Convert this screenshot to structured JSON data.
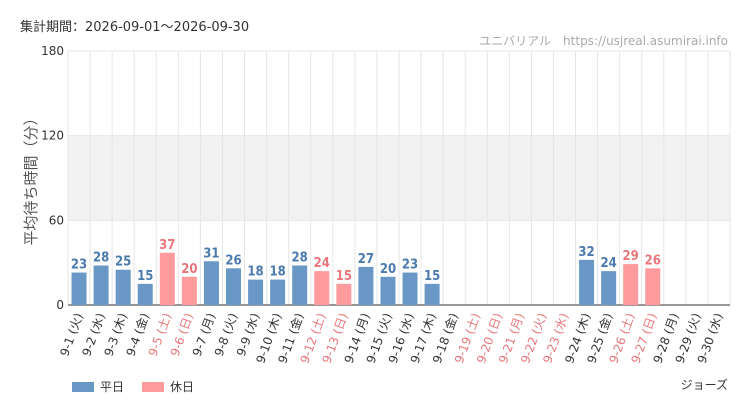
{
  "header": {
    "period": "集計期間：2026-09-01～2026-09-30",
    "credit": "ユニバリアル　https://usjreal.asumirai.info"
  },
  "footer": {
    "subject": "ジョーズ"
  },
  "legend": [
    {
      "label": "平日",
      "color": "#6a98c6"
    },
    {
      "label": "休日",
      "color": "#ff9a9d"
    }
  ],
  "colors": {
    "weekday_bar": "#6a98c6",
    "holiday_bar": "#ff9a9d",
    "weekday_text": "#4a7aae",
    "holiday_text": "#e8767b",
    "band": "#f2f2f2",
    "grid": "#e6e6e6",
    "axis": "#333333"
  },
  "chart_data": {
    "type": "bar",
    "ylabel": "平均待ち時間（分）",
    "ylim": [
      0,
      180
    ],
    "yticks": [
      0,
      60,
      120,
      180
    ],
    "shaded_band": [
      60,
      120
    ],
    "categories": [
      "9-1 (火)",
      "9-2 (水)",
      "9-3 (木)",
      "9-4 (金)",
      "9-5 (土)",
      "9-6 (日)",
      "9-7 (月)",
      "9-8 (火)",
      "9-9 (水)",
      "9-10 (木)",
      "9-11 (金)",
      "9-12 (土)",
      "9-13 (日)",
      "9-14 (月)",
      "9-15 (火)",
      "9-16 (水)",
      "9-17 (木)",
      "9-18 (金)",
      "9-19 (土)",
      "9-20 (日)",
      "9-21 (月)",
      "9-22 (火)",
      "9-23 (水)",
      "9-24 (木)",
      "9-25 (金)",
      "9-26 (土)",
      "9-27 (日)",
      "9-28 (月)",
      "9-29 (火)",
      "9-30 (水)"
    ],
    "values": [
      23,
      28,
      25,
      15,
      37,
      20,
      31,
      26,
      18,
      18,
      28,
      24,
      15,
      27,
      20,
      23,
      15,
      null,
      null,
      null,
      null,
      null,
      null,
      32,
      24,
      29,
      26,
      null,
      null,
      null
    ],
    "holiday": [
      false,
      false,
      false,
      false,
      true,
      true,
      false,
      false,
      false,
      false,
      false,
      true,
      true,
      false,
      false,
      false,
      false,
      false,
      true,
      true,
      true,
      true,
      true,
      false,
      false,
      true,
      true,
      false,
      false,
      false
    ]
  }
}
